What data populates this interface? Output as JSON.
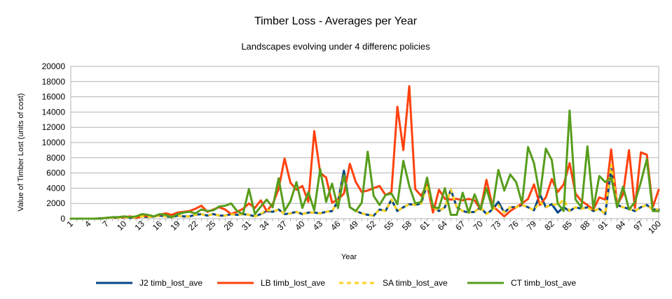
{
  "chart_data": {
    "type": "line",
    "title": "Timber Loss - Averages per Year",
    "subtitle": "Landscapes evolving under 4 differenc policies",
    "xlabel": "Year",
    "ylabel": "Value of Timber Lost (units of cost)",
    "x": [
      1,
      2,
      3,
      4,
      5,
      6,
      7,
      8,
      9,
      10,
      11,
      12,
      13,
      14,
      15,
      16,
      17,
      18,
      19,
      20,
      21,
      22,
      23,
      24,
      25,
      26,
      27,
      28,
      29,
      30,
      31,
      32,
      33,
      34,
      35,
      36,
      37,
      38,
      39,
      40,
      41,
      42,
      43,
      44,
      45,
      46,
      47,
      48,
      49,
      50,
      51,
      52,
      53,
      54,
      55,
      56,
      57,
      58,
      59,
      60,
      61,
      62,
      63,
      64,
      65,
      66,
      67,
      68,
      69,
      70,
      71,
      72,
      73,
      74,
      75,
      76,
      77,
      78,
      79,
      80,
      81,
      82,
      83,
      84,
      85,
      86,
      87,
      88,
      89,
      90,
      91,
      92,
      93,
      94,
      95,
      96,
      97,
      98,
      99,
      100
    ],
    "x_ticks": [
      1,
      4,
      7,
      10,
      13,
      16,
      19,
      22,
      25,
      28,
      31,
      34,
      37,
      40,
      43,
      46,
      49,
      52,
      55,
      58,
      61,
      64,
      67,
      70,
      73,
      76,
      79,
      82,
      85,
      88,
      91,
      94,
      97,
      100
    ],
    "ylim": [
      0,
      20000
    ],
    "y_ticks": [
      0,
      2000,
      4000,
      6000,
      8000,
      10000,
      12000,
      14000,
      16000,
      18000,
      20000
    ],
    "grid": "horizontal",
    "legend_position": "bottom",
    "series": [
      {
        "name": "J2 timb_lost_ave",
        "color": "#004586",
        "style": "solid",
        "values": [
          0,
          0,
          0,
          0,
          0,
          50,
          100,
          150,
          100,
          200,
          100,
          200,
          300,
          200,
          300,
          400,
          300,
          200,
          400,
          300,
          300,
          500,
          600,
          400,
          600,
          400,
          400,
          600,
          500,
          600,
          500,
          300,
          600,
          1000,
          900,
          1200,
          600,
          700,
          900,
          600,
          800,
          800,
          700,
          900,
          1000,
          2300,
          6300,
          1500,
          1000,
          700,
          500,
          400,
          1200,
          1000,
          2500,
          1000,
          1500,
          1900,
          1800,
          2000,
          4500,
          1500,
          1000,
          1500,
          3800,
          1500,
          1000,
          800,
          900,
          1500,
          600,
          1200,
          2200,
          800,
          1500,
          1500,
          1800,
          1500,
          1100,
          3200,
          1500,
          1900,
          800,
          1500,
          1000,
          1500,
          1300,
          1500,
          1000,
          1300,
          600,
          6500,
          1800,
          1500,
          1300,
          1000,
          1500,
          1800,
          1200,
          1200
        ]
      },
      {
        "name": "LB timb_lost_ave",
        "color": "#ff420e",
        "style": "solid",
        "values": [
          0,
          0,
          0,
          0,
          0,
          0,
          100,
          150,
          200,
          200,
          300,
          100,
          300,
          400,
          300,
          500,
          700,
          500,
          800,
          900,
          1000,
          1300,
          1700,
          900,
          1200,
          1500,
          1200,
          600,
          900,
          1300,
          2000,
          1400,
          2400,
          1000,
          1900,
          3900,
          7900,
          4700,
          3800,
          4300,
          2200,
          11500,
          6000,
          5400,
          2100,
          2500,
          3300,
          7200,
          4800,
          3500,
          3700,
          4000,
          4300,
          3100,
          3500,
          14700,
          9000,
          17400,
          3900,
          3000,
          4500,
          800,
          3800,
          2600,
          2500,
          2600,
          2400,
          2600,
          2400,
          1200,
          5100,
          1700,
          1000,
          300,
          1000,
          1500,
          2000,
          2600,
          4500,
          1800,
          2800,
          5200,
          3500,
          4500,
          7300,
          3300,
          2300,
          1800,
          1200,
          2800,
          2500,
          9100,
          1800,
          3200,
          9000,
          1400,
          8700,
          8400,
          1500,
          3800
        ]
      },
      {
        "name": "SA timb_lost_ave",
        "color": "#ffd320",
        "style": "dashed",
        "values": [
          0,
          0,
          0,
          0,
          0,
          50,
          100,
          150,
          100,
          200,
          100,
          200,
          300,
          200,
          300,
          400,
          300,
          200,
          400,
          300,
          300,
          500,
          600,
          400,
          600,
          400,
          400,
          600,
          500,
          600,
          500,
          300,
          600,
          1200,
          900,
          1200,
          600,
          700,
          900,
          600,
          800,
          800,
          700,
          900,
          1000,
          2300,
          5800,
          1500,
          1000,
          700,
          500,
          400,
          1200,
          1000,
          2500,
          1000,
          1500,
          1900,
          1800,
          2000,
          4500,
          1500,
          1000,
          1500,
          3800,
          1500,
          1000,
          800,
          900,
          1500,
          600,
          1200,
          1800,
          800,
          1500,
          1500,
          1800,
          1500,
          1100,
          2200,
          1500,
          1900,
          1800,
          2500,
          1000,
          1500,
          1300,
          1500,
          1000,
          1300,
          600,
          7100,
          1800,
          1500,
          1300,
          1000,
          1500,
          1800,
          1200,
          1200
        ]
      },
      {
        "name": "CT timb_lost_ave",
        "color": "#579d1c",
        "style": "solid",
        "values": [
          0,
          0,
          0,
          0,
          0,
          0,
          100,
          200,
          200,
          300,
          200,
          300,
          600,
          500,
          300,
          600,
          500,
          200,
          600,
          800,
          900,
          700,
          1200,
          1000,
          1100,
          1600,
          1700,
          2000,
          1000,
          600,
          3900,
          600,
          1600,
          2500,
          1500,
          5300,
          1000,
          2300,
          4800,
          1400,
          3500,
          1100,
          6500,
          2200,
          4600,
          1400,
          5700,
          1500,
          1000,
          2100,
          8800,
          3000,
          1800,
          3100,
          3300,
          1900,
          7600,
          4300,
          2000,
          2200,
          5400,
          1500,
          1400,
          4000,
          500,
          500,
          3400,
          800,
          3200,
          1200,
          4000,
          1300,
          6400,
          3700,
          5800,
          4800,
          2000,
          9400,
          7300,
          3000,
          9200,
          7700,
          2000,
          1000,
          14200,
          2500,
          1500,
          9500,
          1300,
          5600,
          4800,
          5400,
          1500,
          4200,
          1200,
          2200,
          4800,
          7800,
          1000,
          1000
        ]
      }
    ]
  }
}
